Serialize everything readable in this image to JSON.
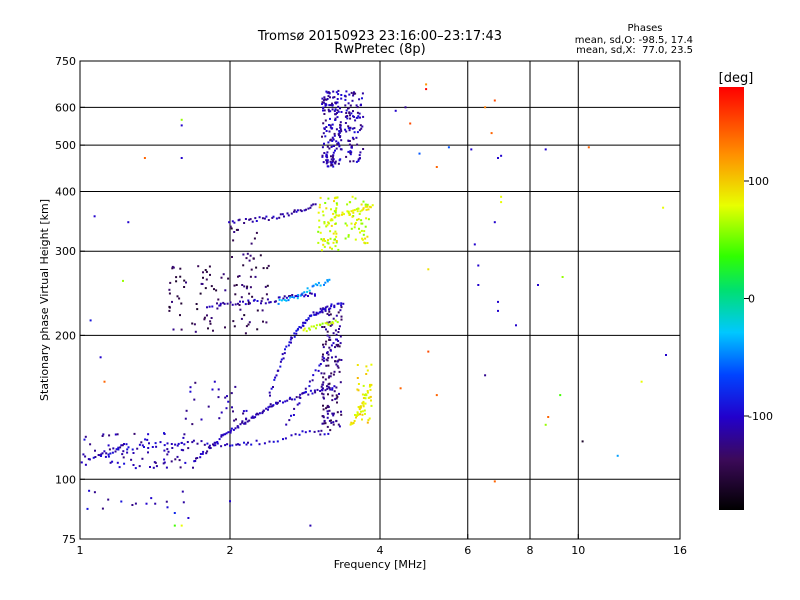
{
  "chart_data": {
    "type": "scatter",
    "title": "Tromsø 20150923 23:16:00–23:17:43",
    "subtitle": "RwPretec (8p)",
    "xlabel": "Frequency [MHz]",
    "ylabel": "Stationary phase Virtual Height [km]",
    "x_scale": "log",
    "y_scale": "log",
    "xlim": [
      1,
      16
    ],
    "ylim": [
      75,
      750
    ],
    "x_ticks": [
      1,
      2,
      4,
      6,
      8,
      10,
      16
    ],
    "x_ticklabels": [
      "1",
      "2",
      "4",
      "6",
      "8",
      "10",
      "16"
    ],
    "x_gridlines": [
      2,
      4,
      6,
      8,
      10
    ],
    "y_ticks": [
      75,
      100,
      200,
      300,
      400,
      500,
      600,
      750
    ],
    "y_ticklabels": [
      "75",
      "100",
      "200",
      "300",
      "400",
      "500",
      "600",
      "750"
    ],
    "y_gridlines": [
      100,
      200,
      300,
      400,
      500,
      600
    ],
    "grid": true,
    "stats": {
      "header": "Phases",
      "line_o": "mean, sd,O: -98.5, 17.4",
      "line_x": "mean, sd,X:  77.0, 23.5"
    },
    "colorbar": {
      "label": "[deg]",
      "range": [
        -180,
        180
      ],
      "ticks": [
        -100,
        0,
        100
      ],
      "ticklabels": [
        "-100",
        "0",
        "100"
      ]
    },
    "traces": [
      {
        "x": [
          1.0,
          1.05,
          1.1,
          1.15,
          1.2,
          1.3,
          1.4,
          1.5,
          1.6,
          1.7,
          1.8,
          1.9,
          2.0,
          2.1,
          2.2,
          2.4,
          2.6,
          2.8,
          3.0,
          3.2
        ],
        "y": [
          112,
          111,
          112,
          113,
          115,
          117,
          118,
          119,
          119,
          120,
          119,
          118,
          118,
          119,
          119,
          120,
          122,
          125,
          125,
          124
        ],
        "phase": -105
      },
      {
        "x": [
          1.7,
          1.75,
          1.8,
          1.85,
          1.9,
          1.95,
          2.0,
          2.05,
          2.1,
          2.15,
          2.2,
          2.25,
          2.3,
          2.35,
          2.4,
          2.45,
          2.5,
          2.6,
          2.7,
          2.8,
          2.9,
          3.0,
          3.1,
          3.2,
          3.3
        ],
        "y": [
          110,
          112,
          115,
          118,
          121,
          124,
          126,
          128,
          130,
          132,
          134,
          136,
          138,
          140,
          142,
          143,
          144,
          146,
          148,
          150,
          152,
          153,
          154,
          155,
          156
        ],
        "phase": -110
      },
      {
        "x": [
          2.4,
          2.45,
          2.5,
          2.55,
          2.6,
          2.65,
          2.7,
          2.75,
          2.8,
          2.85,
          2.9,
          2.95,
          3.0,
          3.05,
          3.1,
          3.15,
          3.2,
          3.3,
          3.4
        ],
        "y": [
          150,
          160,
          170,
          180,
          190,
          195,
          200,
          205,
          210,
          215,
          220,
          222,
          224,
          226,
          226,
          228,
          230,
          232,
          235
        ],
        "phase": -100
      },
      {
        "x": [
          2.6,
          2.7,
          2.8,
          2.9,
          3.0,
          3.1,
          3.2,
          3.3
        ],
        "y": [
          130,
          140,
          150,
          160,
          170,
          180,
          190,
          200
        ],
        "phase": -105
      },
      {
        "x": [
          1.8,
          1.9,
          2.0,
          2.1,
          2.2,
          2.3,
          2.4,
          2.5,
          2.6,
          2.7,
          2.8,
          2.9,
          3.0
        ],
        "y": [
          230,
          232,
          234,
          234,
          235,
          235,
          236,
          238,
          240,
          241,
          243,
          244,
          245
        ],
        "phase": -108
      },
      {
        "x": [
          2.0,
          2.1,
          2.2,
          2.3,
          2.4,
          2.5,
          2.6,
          2.7,
          2.8,
          2.9,
          3.0
        ],
        "y": [
          345,
          346,
          348,
          350,
          352,
          355,
          358,
          362,
          366,
          370,
          375
        ],
        "phase": -112
      },
      {
        "x": [
          2.5,
          2.6,
          2.7,
          2.8,
          2.9,
          3.0,
          3.1,
          3.2
        ],
        "y": [
          235,
          238,
          240,
          245,
          250,
          255,
          258,
          260
        ],
        "phase": -40
      },
      {
        "x": [
          2.8,
          2.9,
          3.0,
          3.1,
          3.2,
          3.3
        ],
        "y": [
          205,
          207,
          209,
          211,
          213,
          215
        ],
        "phase": 70
      },
      {
        "x": [
          3.5,
          3.55,
          3.6,
          3.65,
          3.7,
          3.75,
          3.8,
          3.85
        ],
        "y": [
          130,
          133,
          137,
          140,
          145,
          150,
          155,
          160
        ],
        "phase": 85
      },
      {
        "x": [
          3.1,
          3.2,
          3.3,
          3.4,
          3.5,
          3.6,
          3.7,
          3.8,
          3.9
        ],
        "y": [
          340,
          350,
          355,
          360,
          362,
          365,
          368,
          370,
          372
        ],
        "phase": 80
      }
    ],
    "clusters": [
      {
        "x": [
          3.05,
          3.35
        ],
        "y": [
          450,
          650
        ],
        "phase": -112,
        "n": 160
      },
      {
        "x": [
          3.4,
          3.7
        ],
        "y": [
          450,
          650
        ],
        "phase": -112,
        "n": 90
      },
      {
        "x": [
          3.05,
          3.35
        ],
        "y": [
          125,
          230
        ],
        "phase": -130,
        "n": 140
      },
      {
        "x": [
          3.0,
          3.3
        ],
        "y": [
          300,
          390
        ],
        "phase": 75,
        "n": 60
      },
      {
        "x": [
          3.4,
          3.8
        ],
        "y": [
          310,
          390
        ],
        "phase": 75,
        "n": 50
      },
      {
        "x": [
          3.6,
          3.85
        ],
        "y": [
          130,
          175
        ],
        "phase": 90,
        "n": 35
      },
      {
        "x": [
          1.5,
          2.0
        ],
        "y": [
          200,
          280
        ],
        "phase": -140,
        "n": 60
      },
      {
        "x": [
          2.0,
          2.4
        ],
        "y": [
          200,
          340
        ],
        "phase": -140,
        "n": 60
      },
      {
        "x": [
          1.0,
          1.7
        ],
        "y": [
          105,
          125
        ],
        "phase": -110,
        "n": 80
      },
      {
        "x": [
          1.6,
          2.2
        ],
        "y": [
          130,
          160
        ],
        "phase": -115,
        "n": 30
      },
      {
        "x": [
          1.0,
          1.8
        ],
        "y": [
          85,
          95
        ],
        "phase": -110,
        "n": 15
      }
    ],
    "scattered": [
      {
        "x": 1.35,
        "y": 470,
        "phase": 140
      },
      {
        "x": 1.6,
        "y": 470,
        "phase": -100
      },
      {
        "x": 1.6,
        "y": 550,
        "phase": -100
      },
      {
        "x": 1.6,
        "y": 565,
        "phase": 60
      },
      {
        "x": 1.25,
        "y": 345,
        "phase": -100
      },
      {
        "x": 1.07,
        "y": 355,
        "phase": -100
      },
      {
        "x": 1.22,
        "y": 260,
        "phase": 60
      },
      {
        "x": 1.05,
        "y": 215,
        "phase": -90
      },
      {
        "x": 1.1,
        "y": 180,
        "phase": -100
      },
      {
        "x": 1.12,
        "y": 160,
        "phase": 140
      },
      {
        "x": 4.3,
        "y": 590,
        "phase": -100
      },
      {
        "x": 4.5,
        "y": 600,
        "phase": -120
      },
      {
        "x": 4.6,
        "y": 555,
        "phase": 150
      },
      {
        "x": 4.8,
        "y": 480,
        "phase": -60
      },
      {
        "x": 4.95,
        "y": 670,
        "phase": 120
      },
      {
        "x": 4.95,
        "y": 655,
        "phase": 180
      },
      {
        "x": 5.2,
        "y": 450,
        "phase": 140
      },
      {
        "x": 5.5,
        "y": 495,
        "phase": -60
      },
      {
        "x": 6.1,
        "y": 490,
        "phase": -100
      },
      {
        "x": 6.5,
        "y": 600,
        "phase": 130
      },
      {
        "x": 6.8,
        "y": 620,
        "phase": 150
      },
      {
        "x": 6.9,
        "y": 470,
        "phase": -100
      },
      {
        "x": 7.0,
        "y": 475,
        "phase": -100
      },
      {
        "x": 6.7,
        "y": 530,
        "phase": 140
      },
      {
        "x": 8.6,
        "y": 490,
        "phase": -100
      },
      {
        "x": 10.5,
        "y": 495,
        "phase": 140
      },
      {
        "x": 14.8,
        "y": 370,
        "phase": 80
      },
      {
        "x": 6.2,
        "y": 310,
        "phase": -100
      },
      {
        "x": 6.3,
        "y": 280,
        "phase": -100
      },
      {
        "x": 6.3,
        "y": 255,
        "phase": -100
      },
      {
        "x": 6.9,
        "y": 235,
        "phase": -100
      },
      {
        "x": 6.9,
        "y": 225,
        "phase": -100
      },
      {
        "x": 6.8,
        "y": 345,
        "phase": -100
      },
      {
        "x": 7.0,
        "y": 380,
        "phase": 80
      },
      {
        "x": 7.0,
        "y": 390,
        "phase": 80
      },
      {
        "x": 7.5,
        "y": 210,
        "phase": -100
      },
      {
        "x": 8.3,
        "y": 255,
        "phase": -100
      },
      {
        "x": 9.3,
        "y": 265,
        "phase": 60
      },
      {
        "x": 9.2,
        "y": 150,
        "phase": 40
      },
      {
        "x": 8.7,
        "y": 135,
        "phase": 140
      },
      {
        "x": 8.6,
        "y": 130,
        "phase": 60
      },
      {
        "x": 10.2,
        "y": 120,
        "phase": -160
      },
      {
        "x": 12.0,
        "y": 112,
        "phase": -40
      },
      {
        "x": 13.4,
        "y": 160,
        "phase": 80
      },
      {
        "x": 15.0,
        "y": 182,
        "phase": -100
      },
      {
        "x": 5.0,
        "y": 275,
        "phase": 90
      },
      {
        "x": 5.0,
        "y": 185,
        "phase": 150
      },
      {
        "x": 4.4,
        "y": 155,
        "phase": 140
      },
      {
        "x": 5.2,
        "y": 150,
        "phase": 140
      },
      {
        "x": 6.5,
        "y": 165,
        "phase": -120
      },
      {
        "x": 6.8,
        "y": 99,
        "phase": 140
      },
      {
        "x": 1.55,
        "y": 85,
        "phase": -80
      },
      {
        "x": 1.65,
        "y": 83,
        "phase": -100
      },
      {
        "x": 2.0,
        "y": 90,
        "phase": -100
      },
      {
        "x": 1.55,
        "y": 80,
        "phase": 40
      },
      {
        "x": 1.6,
        "y": 80,
        "phase": 80
      },
      {
        "x": 2.9,
        "y": 80,
        "phase": -110
      }
    ]
  }
}
